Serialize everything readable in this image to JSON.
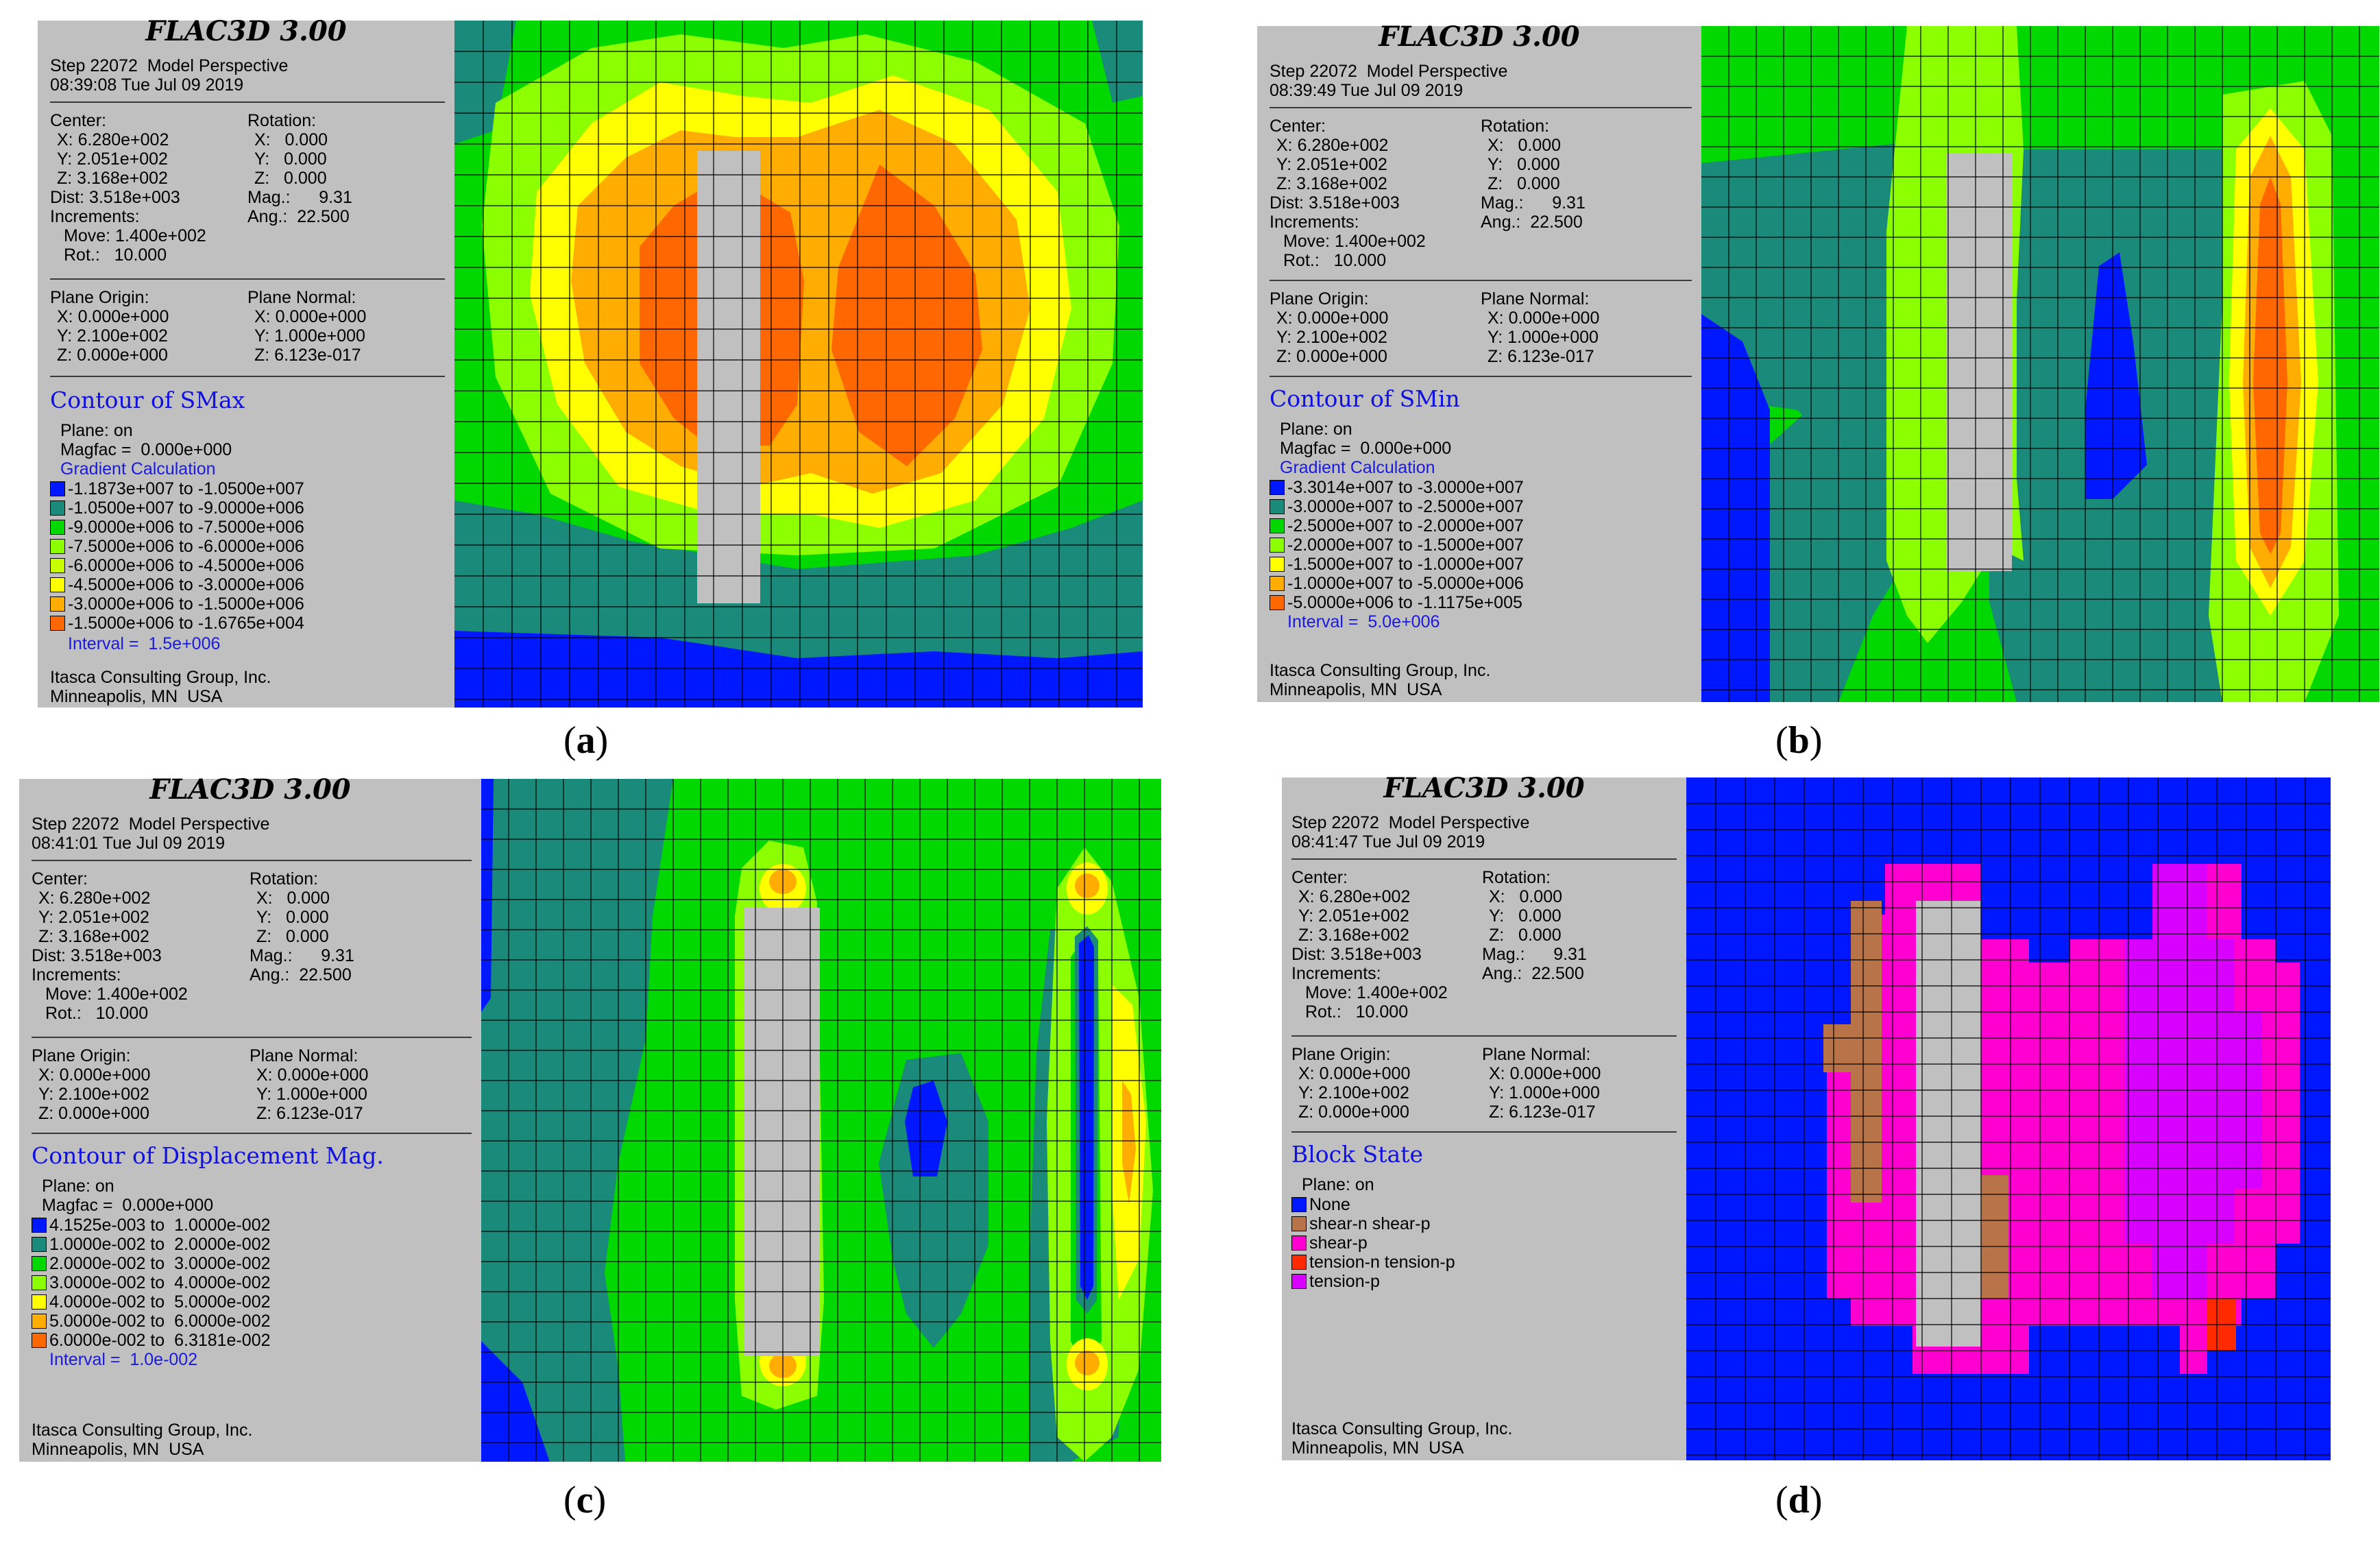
{
  "captions": [
    "(a)",
    "(b)",
    "(c)",
    "(d)"
  ],
  "caption_letters": [
    "a",
    "b",
    "c",
    "d"
  ],
  "colors": {
    "panel_bg": "#c0c0c0",
    "blue": "#0018ff",
    "teal": "#1a8a7a",
    "green": "#00d800",
    "light_green": "#8cff00",
    "yellow": "#ffff00",
    "orange_light": "#ffad00",
    "orange": "#ff6800",
    "orange_dark": "#ff4a00",
    "pillar": "#c0c0c0",
    "brown": "#b87349",
    "magenta": "#ff00d0",
    "red": "#ff2a00",
    "purple": "#d800ff",
    "grid_line": "#000000"
  },
  "panels": [
    {
      "id": "a",
      "software": "FLAC3D 3.00",
      "step_line": "Step 22072  Model Perspective",
      "time_line": "08:39:08 Tue Jul 09 2019",
      "center_label": "Center:",
      "center_x": "X: 6.280e+002",
      "center_y": "Y: 2.051e+002",
      "center_z": "Z: 3.168e+002",
      "dist": "Dist: 3.518e+003",
      "increments": "Increments:",
      "move": "Move: 1.400e+002",
      "rot": "Rot.:   10.000",
      "rotation_label": "Rotation:",
      "rot_x": "X:   0.000",
      "rot_y": "Y:   0.000",
      "rot_z": "Z:   0.000",
      "mag": "Mag.:      9.31",
      "ang": "Ang.:  22.500",
      "plane_origin_label": "Plane Origin:",
      "po_x": "X: 0.000e+000",
      "po_y": "Y: 2.100e+002",
      "po_z": "Z: 0.000e+000",
      "plane_normal_label": "Plane Normal:",
      "pn_x": "X: 0.000e+000",
      "pn_y": "Y: 1.000e+000",
      "pn_z": "Z: 6.123e-017",
      "contour_title": "Contour of SMax",
      "plane_on": "Plane: on",
      "magfac": "Magfac =  0.000e+000",
      "gradient": "Gradient Calculation",
      "legend": [
        {
          "label": "-1.1873e+007 to -1.0500e+007",
          "color": "#0018ff"
        },
        {
          "label": "-1.0500e+007 to -9.0000e+006",
          "color": "#1a8a7a"
        },
        {
          "label": "-9.0000e+006 to -7.5000e+006",
          "color": "#00d800"
        },
        {
          "label": "-7.5000e+006 to -6.0000e+006",
          "color": "#8cff00"
        },
        {
          "label": "-6.0000e+006 to -4.5000e+006",
          "color": "#c8ff00"
        },
        {
          "label": "-4.5000e+006 to -3.0000e+006",
          "color": "#ffff00"
        },
        {
          "label": "-3.0000e+006 to -1.5000e+006",
          "color": "#ffad00"
        },
        {
          "label": "-1.5000e+006 to -1.6765e+004",
          "color": "#ff6800"
        }
      ],
      "interval": "Interval =  1.5e+006",
      "company": "Itasca Consulting Group, Inc.",
      "location": "Minneapolis, MN  USA"
    },
    {
      "id": "b",
      "software": "FLAC3D 3.00",
      "step_line": "Step 22072  Model Perspective",
      "time_line": "08:39:49 Tue Jul 09 2019",
      "center_label": "Center:",
      "center_x": "X: 6.280e+002",
      "center_y": "Y: 2.051e+002",
      "center_z": "Z: 3.168e+002",
      "dist": "Dist: 3.518e+003",
      "increments": "Increments:",
      "move": "Move: 1.400e+002",
      "rot": "Rot.:   10.000",
      "rotation_label": "Rotation:",
      "rot_x": "X:   0.000",
      "rot_y": "Y:   0.000",
      "rot_z": "Z:   0.000",
      "mag": "Mag.:      9.31",
      "ang": "Ang.:  22.500",
      "plane_origin_label": "Plane Origin:",
      "po_x": "X: 0.000e+000",
      "po_y": "Y: 2.100e+002",
      "po_z": "Z: 0.000e+000",
      "plane_normal_label": "Plane Normal:",
      "pn_x": "X: 0.000e+000",
      "pn_y": "Y: 1.000e+000",
      "pn_z": "Z: 6.123e-017",
      "contour_title": "Contour of SMin",
      "plane_on": "Plane: on",
      "magfac": "Magfac =  0.000e+000",
      "gradient": "Gradient Calculation",
      "legend": [
        {
          "label": "-3.3014e+007 to -3.0000e+007",
          "color": "#0018ff"
        },
        {
          "label": "-3.0000e+007 to -2.5000e+007",
          "color": "#1a8a7a"
        },
        {
          "label": "-2.5000e+007 to -2.0000e+007",
          "color": "#00d800"
        },
        {
          "label": "-2.0000e+007 to -1.5000e+007",
          "color": "#8cff00"
        },
        {
          "label": "-1.5000e+007 to -1.0000e+007",
          "color": "#ffff00"
        },
        {
          "label": "-1.0000e+007 to -5.0000e+006",
          "color": "#ffad00"
        },
        {
          "label": "-5.0000e+006 to -1.1175e+005",
          "color": "#ff6800"
        }
      ],
      "interval": "Interval =  5.0e+006",
      "company": "Itasca Consulting Group, Inc.",
      "location": "Minneapolis, MN  USA"
    },
    {
      "id": "c",
      "software": "FLAC3D 3.00",
      "step_line": "Step 22072  Model Perspective",
      "time_line": "08:41:01 Tue Jul 09 2019",
      "center_label": "Center:",
      "center_x": "X: 6.280e+002",
      "center_y": "Y: 2.051e+002",
      "center_z": "Z: 3.168e+002",
      "dist": "Dist: 3.518e+003",
      "increments": "Increments:",
      "move": "Move: 1.400e+002",
      "rot": "Rot.:   10.000",
      "rotation_label": "Rotation:",
      "rot_x": "X:   0.000",
      "rot_y": "Y:   0.000",
      "rot_z": "Z:   0.000",
      "mag": "Mag.:      9.31",
      "ang": "Ang.:  22.500",
      "plane_origin_label": "Plane Origin:",
      "po_x": "X: 0.000e+000",
      "po_y": "Y: 2.100e+002",
      "po_z": "Z: 0.000e+000",
      "plane_normal_label": "Plane Normal:",
      "pn_x": "X: 0.000e+000",
      "pn_y": "Y: 1.000e+000",
      "pn_z": "Z: 6.123e-017",
      "contour_title": "Contour of Displacement Mag.",
      "plane_on": "Plane: on",
      "magfac": "Magfac =  0.000e+000",
      "gradient": "",
      "legend": [
        {
          "label": "4.1525e-003 to  1.0000e-002",
          "color": "#0018ff"
        },
        {
          "label": "1.0000e-002 to  2.0000e-002",
          "color": "#1a8a7a"
        },
        {
          "label": "2.0000e-002 to  3.0000e-002",
          "color": "#00d800"
        },
        {
          "label": "3.0000e-002 to  4.0000e-002",
          "color": "#8cff00"
        },
        {
          "label": "4.0000e-002 to  5.0000e-002",
          "color": "#ffff00"
        },
        {
          "label": "5.0000e-002 to  6.0000e-002",
          "color": "#ffad00"
        },
        {
          "label": "6.0000e-002 to  6.3181e-002",
          "color": "#ff6800"
        }
      ],
      "interval": "Interval =  1.0e-002",
      "company": "Itasca Consulting Group, Inc.",
      "location": "Minneapolis, MN  USA"
    },
    {
      "id": "d",
      "software": "FLAC3D 3.00",
      "step_line": "Step 22072  Model Perspective",
      "time_line": "08:41:47 Tue Jul 09 2019",
      "center_label": "Center:",
      "center_x": "X: 6.280e+002",
      "center_y": "Y: 2.051e+002",
      "center_z": "Z: 3.168e+002",
      "dist": "Dist: 3.518e+003",
      "increments": "Increments:",
      "move": "Move: 1.400e+002",
      "rot": "Rot.:   10.000",
      "rotation_label": "Rotation:",
      "rot_x": "X:   0.000",
      "rot_y": "Y:   0.000",
      "rot_z": "Z:   0.000",
      "mag": "Mag.:      9.31",
      "ang": "Ang.:  22.500",
      "plane_origin_label": "Plane Origin:",
      "po_x": "X: 0.000e+000",
      "po_y": "Y: 2.100e+002",
      "po_z": "Z: 0.000e+000",
      "plane_normal_label": "Plane Normal:",
      "pn_x": "X: 0.000e+000",
      "pn_y": "Y: 1.000e+000",
      "pn_z": "Z: 6.123e-017",
      "contour_title": "Block State",
      "plane_on": "Plane: on",
      "magfac": "",
      "gradient": "",
      "legend": [
        {
          "label": "None",
          "color": "#0018ff"
        },
        {
          "label": "shear-n shear-p",
          "color": "#b87349"
        },
        {
          "label": "shear-p",
          "color": "#ff00d0"
        },
        {
          "label": "tension-n tension-p",
          "color": "#ff2a00"
        },
        {
          "label": "tension-p",
          "color": "#d800ff"
        }
      ],
      "interval": "",
      "company": "Itasca Consulting Group, Inc.",
      "location": "Minneapolis, MN  USA"
    }
  ]
}
